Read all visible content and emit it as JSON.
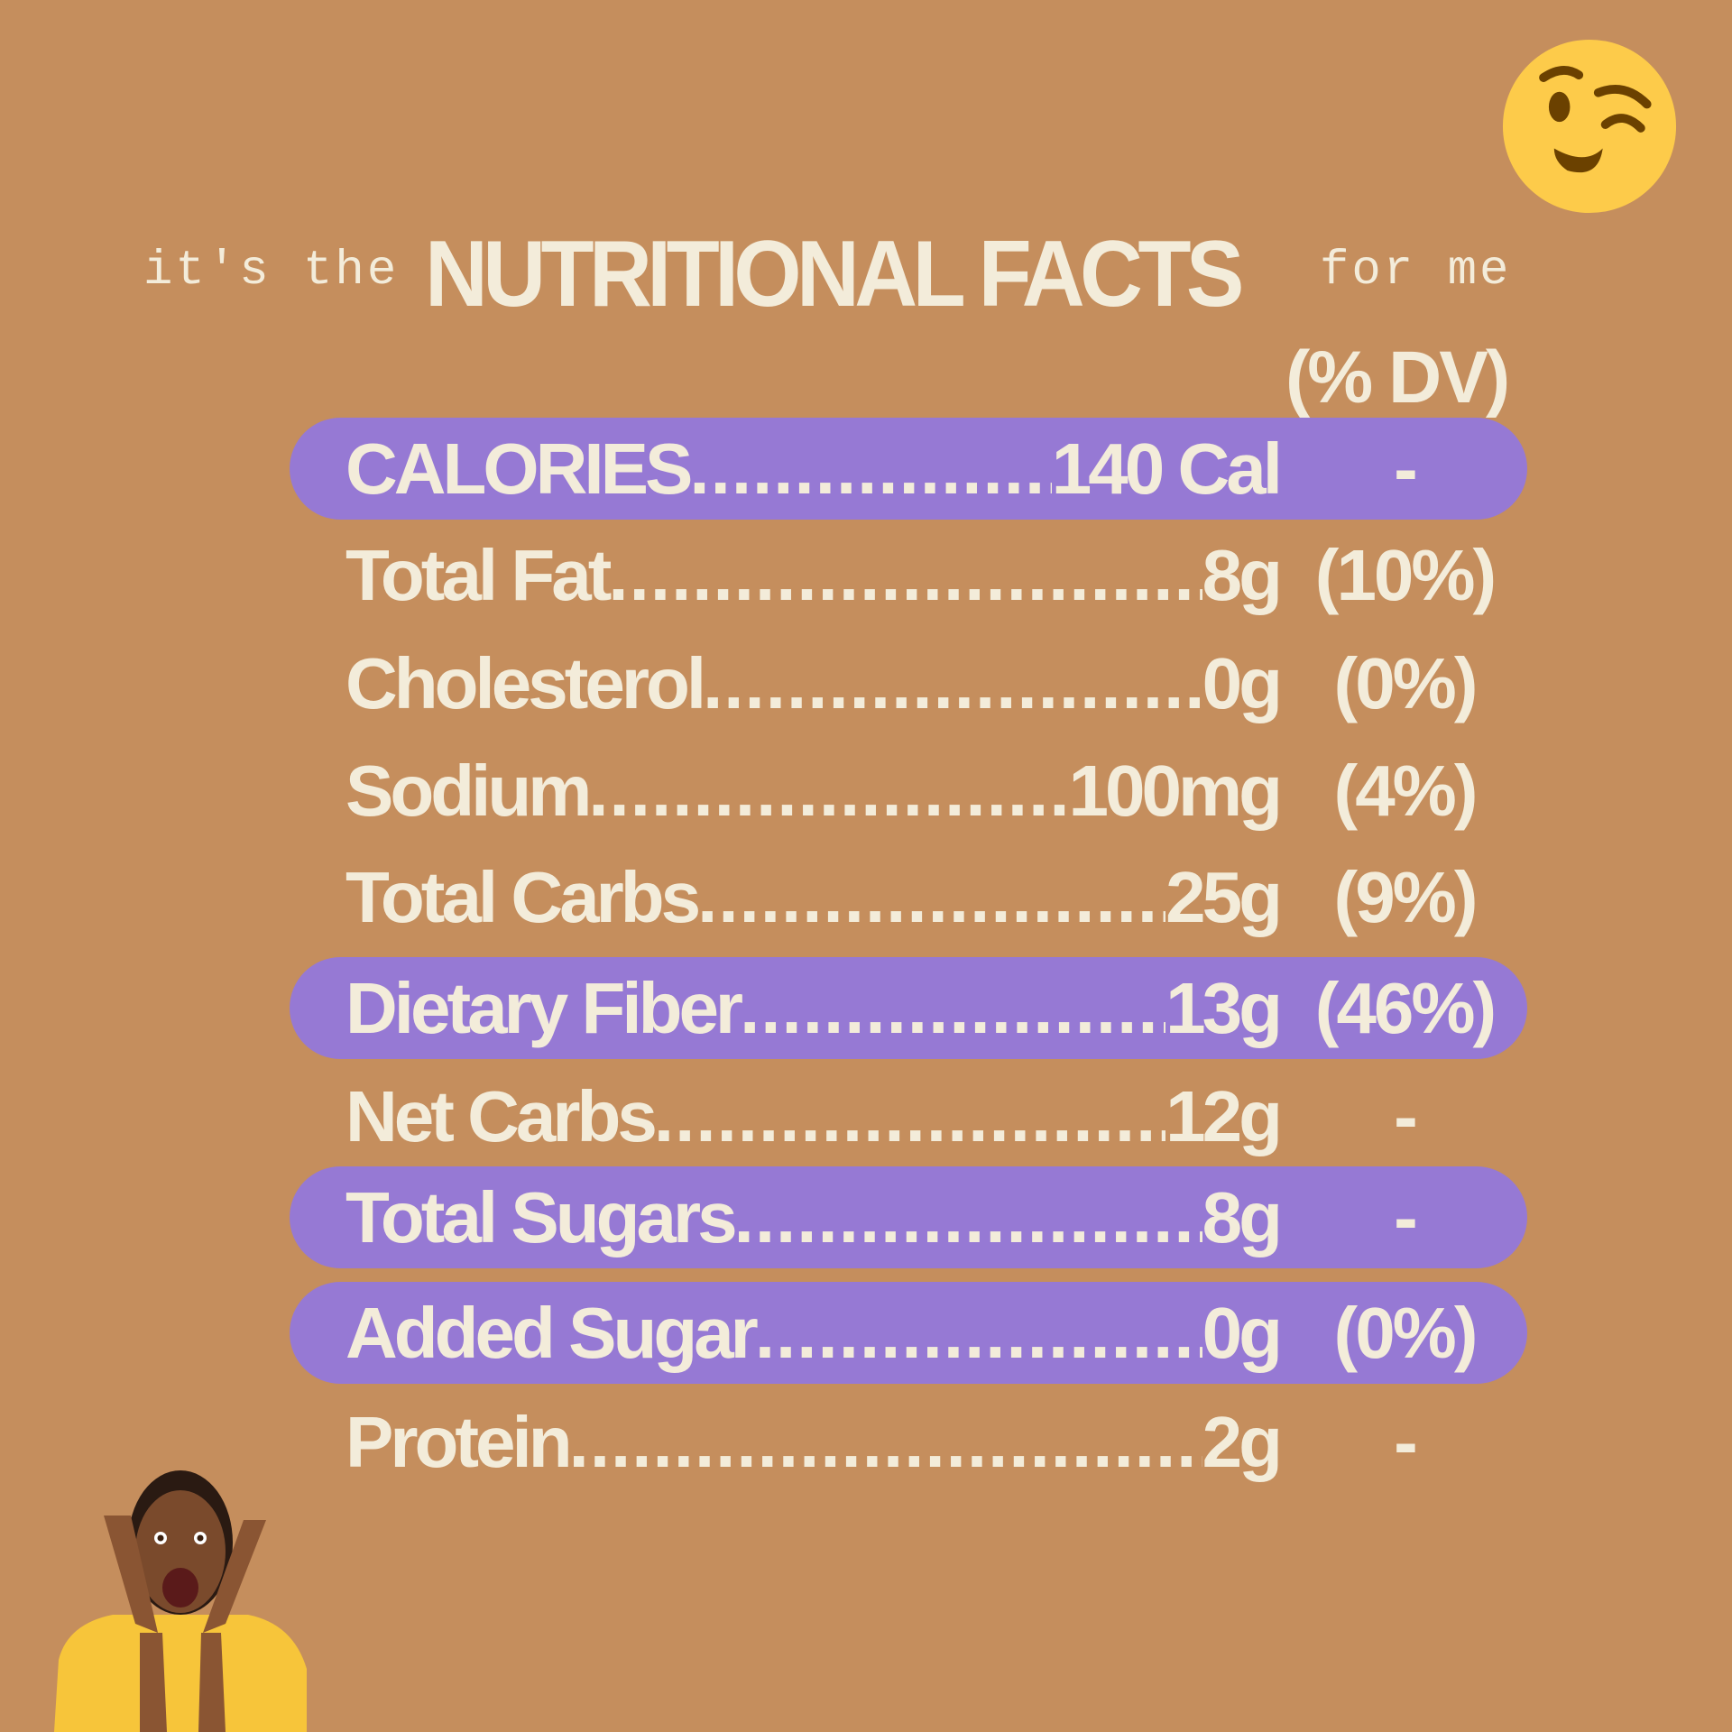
{
  "title": {
    "prefix": "it's the",
    "main": "NUTRITIONAL FACTS",
    "suffix": "for me"
  },
  "dv_header": "(% DV)",
  "rows": [
    {
      "label": "CALORIES",
      "value": "140 Cal",
      "dv": "-",
      "highlighted": true
    },
    {
      "label": "Total Fat",
      "value": "8g",
      "dv": "(10%)",
      "highlighted": false
    },
    {
      "label": "Cholesterol",
      "value": "0g",
      "dv": "(0%)",
      "highlighted": false
    },
    {
      "label": "Sodium",
      "value": "100mg",
      "dv": "(4%)",
      "highlighted": false
    },
    {
      "label": "Total Carbs",
      "value": "25g",
      "dv": "(9%)",
      "highlighted": false
    },
    {
      "label": "Dietary Fiber",
      "value": "13g",
      "dv": "(46%)",
      "highlighted": true
    },
    {
      "label": "Net Carbs",
      "value": "12g",
      "dv": "-",
      "highlighted": false
    },
    {
      "label": "Total Sugars",
      "value": "8g",
      "dv": "-",
      "highlighted": true
    },
    {
      "label": "Added Sugar",
      "value": "0g",
      "dv": "(0%)",
      "highlighted": true
    },
    {
      "label": "Protein",
      "value": "2g",
      "dv": "-",
      "highlighted": false
    }
  ],
  "colors": {
    "background": "#c58e5d",
    "highlight": "#9679d4",
    "text": "#f3ecda",
    "emoji": "#fdcb4a"
  },
  "icons": {
    "top_right": "winking-face-emoji",
    "bottom_left": "surprised-woman-photo"
  }
}
